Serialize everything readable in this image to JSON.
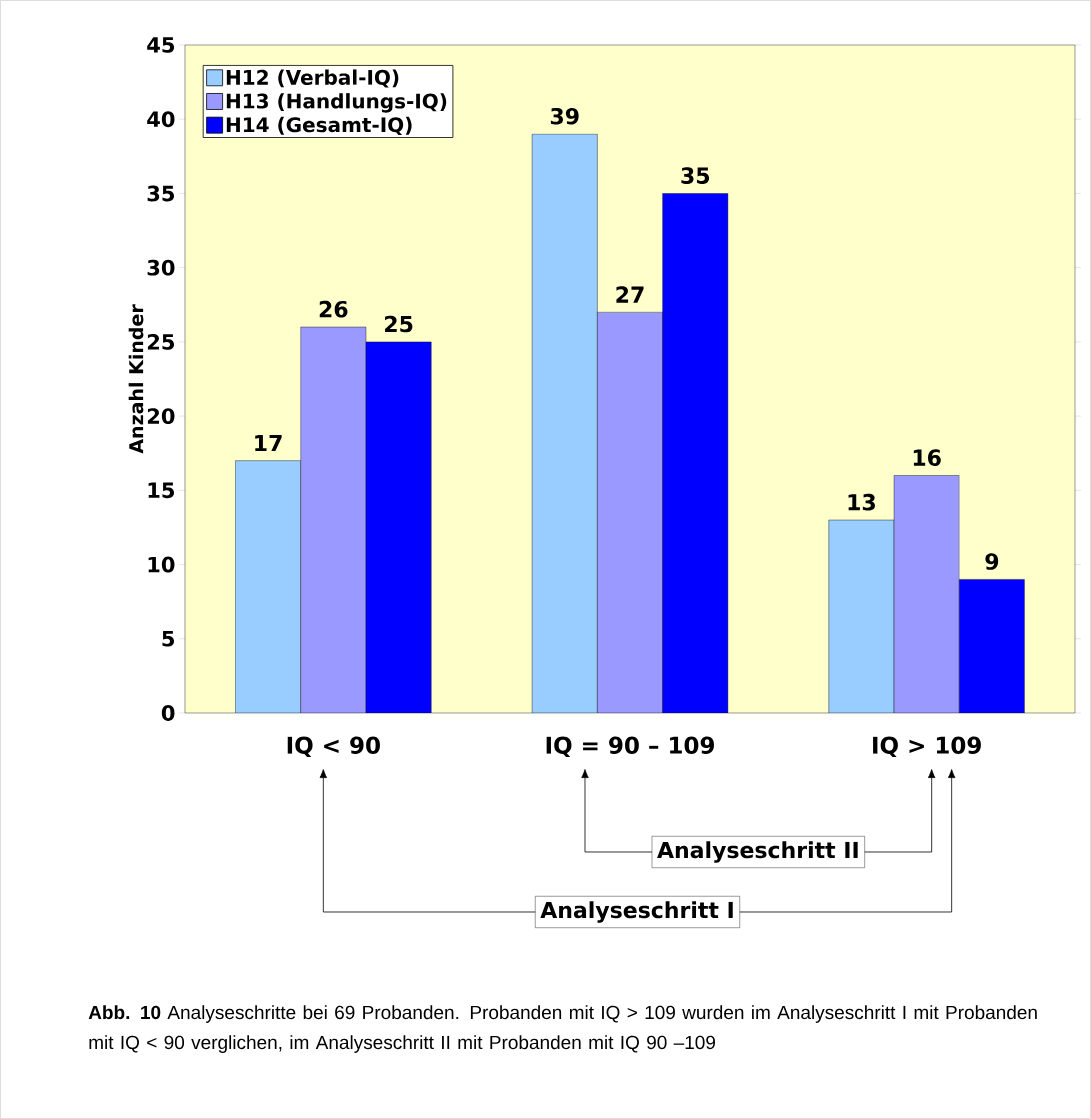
{
  "chart_data": {
    "type": "bar",
    "ylabel": "Anzahl Kinder",
    "categories": [
      "IQ < 90",
      "IQ = 90 – 109",
      "IQ > 109"
    ],
    "series": [
      {
        "name": "H12 (Verbal-IQ)",
        "color": "#99ccff",
        "values": [
          17,
          39,
          13
        ]
      },
      {
        "name": "H13 (Handlungs-IQ)",
        "color": "#9999ff",
        "values": [
          26,
          27,
          16
        ]
      },
      {
        "name": "H14 (Gesamt-IQ)",
        "color": "#0000ff",
        "values": [
          25,
          35,
          9
        ]
      }
    ],
    "ylim": [
      0,
      45
    ],
    "yticks": [
      0,
      5,
      10,
      15,
      20,
      25,
      30,
      35,
      40,
      45
    ],
    "data_labels": true,
    "legend": "top left",
    "annotations": [
      "Analyseschritt II",
      "Analyseschritt I",
      "**Abb. 10**  Analyseschritte bei 69 Probanden. Probanden mit IQ > 109 wurden im Analyseschritt I mit Probanden mit IQ < 90 verglichen, im Analyseschritt II mit Probanden mit IQ 90 –109"
    ]
  }
}
